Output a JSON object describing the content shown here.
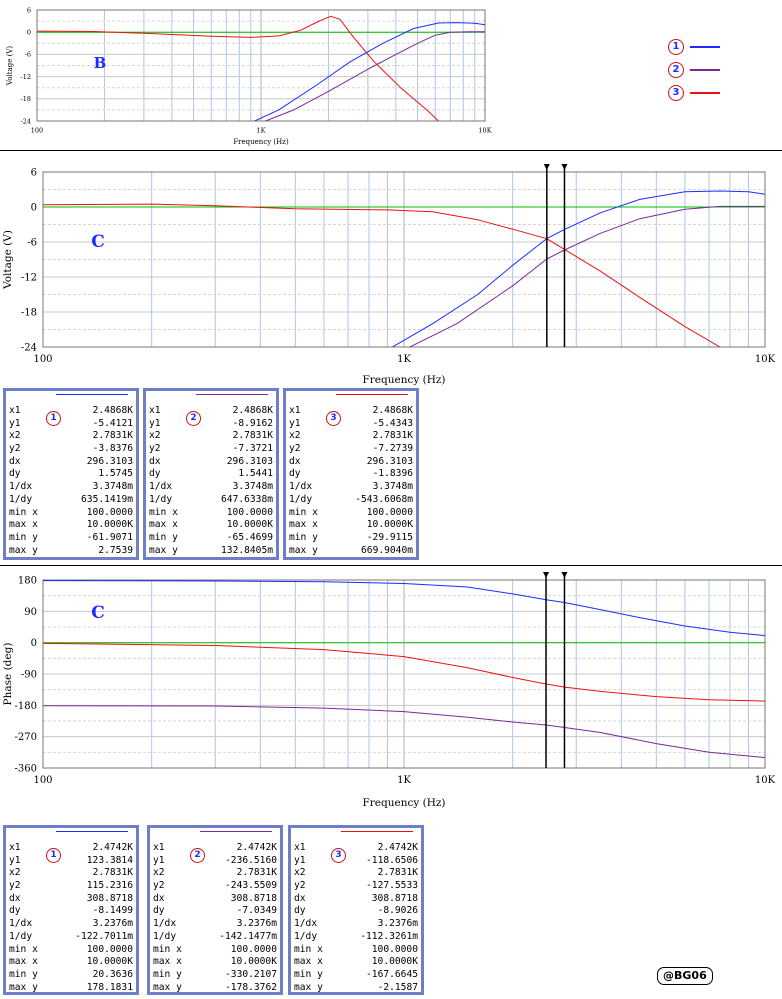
{
  "colors": {
    "s1": "#1c2cff",
    "s2": "#7a2a9a",
    "s3": "#ee1111",
    "zero": "#00c000",
    "grid": "#aac6ee",
    "boxBorder": "#6e7fc8",
    "badgeRing": "#d01010"
  },
  "legend": [
    {
      "num": "1",
      "color": "#1c2cff"
    },
    {
      "num": "2",
      "color": "#7a2a9a"
    },
    {
      "num": "3",
      "color": "#ee1111"
    }
  ],
  "chart_data": [
    {
      "id": "plotB",
      "type": "line",
      "title": "B",
      "xlabel": "Frequency (Hz)",
      "ylabel": "Voltage (V)",
      "xscale": "log",
      "xlim": [
        100,
        10000
      ],
      "ylim": [
        -24,
        6
      ],
      "xticks": [
        {
          "v": 100,
          "label": "100"
        },
        {
          "v": 1000,
          "label": "1K"
        },
        {
          "v": 10000,
          "label": "10K"
        }
      ],
      "yticks": [
        {
          "v": 6,
          "label": "6"
        },
        {
          "v": 0,
          "label": "0"
        },
        {
          "v": -6,
          "label": "-6"
        },
        {
          "v": -12,
          "label": "-12"
        },
        {
          "v": -18,
          "label": "-18"
        },
        {
          "v": -24,
          "label": "-24"
        }
      ],
      "cursors": [],
      "series": [
        {
          "key": "s3",
          "points": [
            [
              100,
              0.3
            ],
            [
              180,
              0.2
            ],
            [
              300,
              -0.3
            ],
            [
              600,
              -1.1
            ],
            [
              900,
              -1.4
            ],
            [
              1200,
              -1.0
            ],
            [
              1500,
              0.5
            ],
            [
              1800,
              2.9
            ],
            [
              2050,
              4.3
            ],
            [
              2250,
              3.5
            ],
            [
              2600,
              -1.5
            ],
            [
              3200,
              -8
            ],
            [
              4200,
              -15
            ],
            [
              5500,
              -21
            ],
            [
              6200,
              -24
            ]
          ]
        },
        {
          "key": "s1",
          "points": [
            [
              900,
              -24.5
            ],
            [
              1200,
              -21
            ],
            [
              1800,
              -14
            ],
            [
              2500,
              -8
            ],
            [
              3500,
              -3
            ],
            [
              4800,
              1
            ],
            [
              6200,
              2.5
            ],
            [
              7500,
              2.6
            ],
            [
              9000,
              2.4
            ],
            [
              10000,
              2.0
            ]
          ]
        },
        {
          "key": "s2",
          "points": [
            [
              1000,
              -24.5
            ],
            [
              1400,
              -21
            ],
            [
              2000,
              -16
            ],
            [
              3000,
              -10
            ],
            [
              4000,
              -6
            ],
            [
              5000,
              -3
            ],
            [
              6000,
              -0.8
            ],
            [
              7000,
              0
            ],
            [
              8500,
              0.1
            ],
            [
              10000,
              0.1
            ]
          ]
        },
        {
          "key": "zero",
          "points": [
            [
              100,
              0
            ],
            [
              10000,
              0
            ]
          ]
        }
      ]
    },
    {
      "id": "plotC1",
      "type": "line",
      "title": "C",
      "xlabel": "Frequency (Hz)",
      "ylabel": "Voltage (V)",
      "xscale": "log",
      "xlim": [
        100,
        10000
      ],
      "ylim": [
        -24,
        6
      ],
      "xticks": [
        {
          "v": 100,
          "label": "100"
        },
        {
          "v": 1000,
          "label": "1K"
        },
        {
          "v": 10000,
          "label": "10K"
        }
      ],
      "yticks": [
        {
          "v": 6,
          "label": "6"
        },
        {
          "v": 0,
          "label": "0"
        },
        {
          "v": -6,
          "label": "-6"
        },
        {
          "v": -12,
          "label": "-12"
        },
        {
          "v": -18,
          "label": "-18"
        },
        {
          "v": -24,
          "label": "-24"
        }
      ],
      "cursors": [
        2486.8,
        2783.1
      ],
      "series": [
        {
          "key": "s3",
          "points": [
            [
              100,
              0.4
            ],
            [
              200,
              0.5
            ],
            [
              300,
              0.2
            ],
            [
              500,
              -0.3
            ],
            [
              900,
              -0.5
            ],
            [
              1200,
              -0.8
            ],
            [
              1600,
              -2.2
            ],
            [
              2000,
              -3.8
            ],
            [
              2486.8,
              -5.4343
            ],
            [
              2783.1,
              -7.2739
            ],
            [
              3500,
              -11
            ],
            [
              4500,
              -15.5
            ],
            [
              6000,
              -20.5
            ],
            [
              7500,
              -24
            ]
          ]
        },
        {
          "key": "s1",
          "points": [
            [
              900,
              -24.5
            ],
            [
              1200,
              -20
            ],
            [
              1600,
              -15
            ],
            [
              2000,
              -10
            ],
            [
              2486.8,
              -5.4121
            ],
            [
              2783.1,
              -3.8376
            ],
            [
              3500,
              -1
            ],
            [
              4500,
              1.3
            ],
            [
              6000,
              2.6
            ],
            [
              7500,
              2.75
            ],
            [
              9000,
              2.6
            ],
            [
              10000,
              2.2
            ]
          ]
        },
        {
          "key": "s2",
          "points": [
            [
              1000,
              -24.5
            ],
            [
              1400,
              -20
            ],
            [
              2000,
              -13.5
            ],
            [
              2486.8,
              -8.9162
            ],
            [
              2783.1,
              -7.3721
            ],
            [
              3500,
              -4.5
            ],
            [
              4500,
              -2
            ],
            [
              6000,
              -0.4
            ],
            [
              7500,
              0.1
            ],
            [
              10000,
              0.1
            ]
          ]
        },
        {
          "key": "zero",
          "points": [
            [
              100,
              0
            ],
            [
              10000,
              0
            ]
          ]
        }
      ]
    },
    {
      "id": "plotC2",
      "type": "line",
      "title": "C",
      "xlabel": "Frequency (Hz)",
      "ylabel": "Phase (deg)",
      "xscale": "log",
      "xlim": [
        100,
        10000
      ],
      "ylim": [
        -360,
        180
      ],
      "xticks": [
        {
          "v": 100,
          "label": "100"
        },
        {
          "v": 1000,
          "label": "1K"
        },
        {
          "v": 10000,
          "label": "10K"
        }
      ],
      "yticks": [
        {
          "v": 180,
          "label": "180"
        },
        {
          "v": 90,
          "label": "90"
        },
        {
          "v": 0,
          "label": "0"
        },
        {
          "v": -90,
          "label": "-90"
        },
        {
          "v": -180,
          "label": "-180"
        },
        {
          "v": -270,
          "label": "-270"
        },
        {
          "v": -360,
          "label": "-360"
        }
      ],
      "cursors": [
        2474.2,
        2783.1
      ],
      "series": [
        {
          "key": "s1",
          "points": [
            [
              100,
              178.2
            ],
            [
              300,
              177
            ],
            [
              600,
              175
            ],
            [
              1000,
              170
            ],
            [
              1500,
              160
            ],
            [
              2000,
              140
            ],
            [
              2474.2,
              123.38
            ],
            [
              2783.1,
              115.23
            ],
            [
              3500,
              95
            ],
            [
              4500,
              72
            ],
            [
              6000,
              48
            ],
            [
              8000,
              30
            ],
            [
              10000,
              20.4
            ]
          ]
        },
        {
          "key": "s3",
          "points": [
            [
              100,
              -2
            ],
            [
              300,
              -8
            ],
            [
              600,
              -20
            ],
            [
              1000,
              -40
            ],
            [
              1500,
              -72
            ],
            [
              2000,
              -100
            ],
            [
              2474.2,
              -118.65
            ],
            [
              2783.1,
              -127.55
            ],
            [
              3500,
              -140
            ],
            [
              5000,
              -155
            ],
            [
              7000,
              -164
            ],
            [
              10000,
              -167.7
            ]
          ]
        },
        {
          "key": "s2",
          "points": [
            [
              100,
              -181
            ],
            [
              300,
              -182
            ],
            [
              600,
              -188
            ],
            [
              1000,
              -198
            ],
            [
              1500,
              -214
            ],
            [
              2000,
              -228
            ],
            [
              2474.2,
              -236.52
            ],
            [
              2783.1,
              -243.55
            ],
            [
              3500,
              -258
            ],
            [
              5000,
              -290
            ],
            [
              7000,
              -315
            ],
            [
              10000,
              -330
            ]
          ]
        },
        {
          "key": "zero",
          "points": [
            [
              100,
              0
            ],
            [
              10000,
              0
            ]
          ]
        }
      ]
    }
  ],
  "measure_tables": [
    {
      "num": "1",
      "color": "#1c2cff",
      "rows": [
        [
          "x1",
          "2.4868K"
        ],
        [
          "y1",
          "-5.4121"
        ],
        [
          "x2",
          "2.7831K"
        ],
        [
          "y2",
          "-3.8376"
        ],
        [
          "dx",
          "296.3103"
        ],
        [
          "dy",
          "1.5745"
        ],
        [
          "1/dx",
          "3.3748m"
        ],
        [
          "1/dy",
          "635.1419m"
        ],
        [
          "min x",
          "100.0000"
        ],
        [
          "max x",
          "10.0000K"
        ],
        [
          "min y",
          "-61.9071"
        ],
        [
          "max y",
          "2.7539"
        ]
      ]
    },
    {
      "num": "2",
      "color": "#7a2a9a",
      "rows": [
        [
          "x1",
          "2.4868K"
        ],
        [
          "y1",
          "-8.9162"
        ],
        [
          "x2",
          "2.7831K"
        ],
        [
          "y2",
          "-7.3721"
        ],
        [
          "dx",
          "296.3103"
        ],
        [
          "dy",
          "1.5441"
        ],
        [
          "1/dx",
          "3.3748m"
        ],
        [
          "1/dy",
          "647.6338m"
        ],
        [
          "min x",
          "100.0000"
        ],
        [
          "max x",
          "10.0000K"
        ],
        [
          "min y",
          "-65.4699"
        ],
        [
          "max y",
          "132.8405m"
        ]
      ]
    },
    {
      "num": "3",
      "color": "#ee1111",
      "rows": [
        [
          "x1",
          "2.4868K"
        ],
        [
          "y1",
          "-5.4343"
        ],
        [
          "x2",
          "2.7831K"
        ],
        [
          "y2",
          "-7.2739"
        ],
        [
          "dx",
          "296.3103"
        ],
        [
          "dy",
          "-1.8396"
        ],
        [
          "1/dx",
          "3.3748m"
        ],
        [
          "1/dy",
          "-543.6068m"
        ],
        [
          "min x",
          "100.0000"
        ],
        [
          "max x",
          "10.0000K"
        ],
        [
          "min y",
          "-29.9115"
        ],
        [
          "max y",
          "669.9040m"
        ]
      ]
    },
    {
      "num": "1",
      "color": "#1c2cff",
      "rows": [
        [
          "x1",
          "2.4742K"
        ],
        [
          "y1",
          "123.3814"
        ],
        [
          "x2",
          "2.7831K"
        ],
        [
          "y2",
          "115.2316"
        ],
        [
          "dx",
          "308.8718"
        ],
        [
          "dy",
          "-8.1499"
        ],
        [
          "1/dx",
          "3.2376m"
        ],
        [
          "1/dy",
          "-122.7011m"
        ],
        [
          "min x",
          "100.0000"
        ],
        [
          "max x",
          "10.0000K"
        ],
        [
          "min y",
          "20.3636"
        ],
        [
          "max y",
          "178.1831"
        ]
      ]
    },
    {
      "num": "2",
      "color": "#7a2a9a",
      "rows": [
        [
          "x1",
          "2.4742K"
        ],
        [
          "y1",
          "-236.5160"
        ],
        [
          "x2",
          "2.7831K"
        ],
        [
          "y2",
          "-243.5509"
        ],
        [
          "dx",
          "308.8718"
        ],
        [
          "dy",
          "-7.0349"
        ],
        [
          "1/dx",
          "3.2376m"
        ],
        [
          "1/dy",
          "-142.1477m"
        ],
        [
          "min x",
          "100.0000"
        ],
        [
          "max x",
          "10.0000K"
        ],
        [
          "min y",
          "-330.2107"
        ],
        [
          "max y",
          "-178.3762"
        ]
      ]
    },
    {
      "num": "3",
      "color": "#ee1111",
      "rows": [
        [
          "x1",
          "2.4742K"
        ],
        [
          "y1",
          "-118.6506"
        ],
        [
          "x2",
          "2.7831K"
        ],
        [
          "y2",
          "-127.5533"
        ],
        [
          "dx",
          "308.8718"
        ],
        [
          "dy",
          "-8.9026"
        ],
        [
          "1/dx",
          "3.2376m"
        ],
        [
          "1/dy",
          "-112.3261m"
        ],
        [
          "min x",
          "100.0000"
        ],
        [
          "max x",
          "10.0000K"
        ],
        [
          "min y",
          "-167.6645"
        ],
        [
          "max y",
          "-2.1587"
        ]
      ]
    }
  ],
  "watermark": "@BG06"
}
